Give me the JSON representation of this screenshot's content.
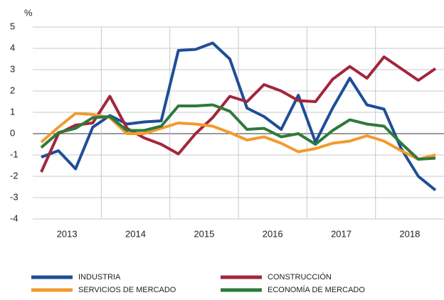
{
  "chart_data": {
    "type": "line",
    "unit_label": "%",
    "categories": [
      "2013",
      null,
      null,
      null,
      "2014",
      null,
      null,
      null,
      "2015",
      null,
      null,
      null,
      "2016",
      null,
      null,
      null,
      "2017",
      null,
      null,
      null,
      "2018",
      null,
      null,
      null
    ],
    "series": [
      {
        "name": "INDUSTRIA",
        "color": "#1f4e96",
        "values": [
          -1.1,
          -0.8,
          -1.65,
          0.3,
          0.85,
          0.45,
          0.55,
          0.6,
          3.9,
          3.95,
          4.25,
          3.5,
          1.2,
          0.8,
          0.2,
          1.8,
          -0.4,
          1.2,
          2.6,
          1.35,
          1.15,
          -0.7,
          -2.0,
          -2.65
        ]
      },
      {
        "name": "CONSTRUCCIÓN",
        "color": "#a3263d",
        "values": [
          -1.8,
          0.0,
          0.4,
          0.5,
          1.75,
          0.25,
          -0.2,
          -0.5,
          -0.95,
          0.0,
          0.75,
          1.75,
          1.5,
          2.3,
          2.0,
          1.55,
          1.5,
          2.55,
          3.15,
          2.6,
          3.6,
          3.05,
          2.5,
          3.05
        ]
      },
      {
        "name": "SERVICIOS DE MERCADO",
        "color": "#f39a2e",
        "values": [
          -0.4,
          0.3,
          0.95,
          0.9,
          0.75,
          0.0,
          0.0,
          0.25,
          0.5,
          0.45,
          0.35,
          0.05,
          -0.3,
          -0.15,
          -0.45,
          -0.85,
          -0.7,
          -0.45,
          -0.35,
          -0.1,
          -0.35,
          -0.8,
          -1.2,
          -1.0
        ]
      },
      {
        "name": "ECONOMÍA DE MERCADO",
        "color": "#2d7a3a",
        "values": [
          -0.65,
          0.05,
          0.25,
          0.75,
          0.8,
          0.15,
          0.15,
          0.35,
          1.3,
          1.3,
          1.35,
          1.05,
          0.2,
          0.25,
          -0.15,
          0.0,
          -0.5,
          0.15,
          0.65,
          0.45,
          0.35,
          -0.45,
          -1.2,
          -1.15
        ]
      }
    ],
    "ylim": [
      -4,
      5
    ],
    "yticks": [
      -4,
      -3,
      -2,
      -1,
      0,
      1,
      2,
      3,
      4,
      5
    ],
    "grid": true
  }
}
